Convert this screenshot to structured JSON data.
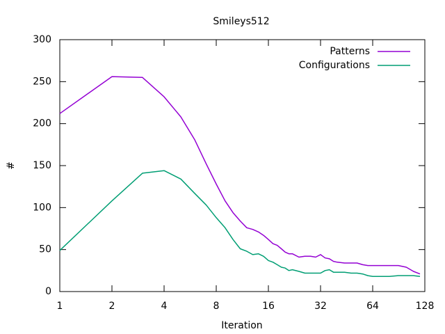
{
  "chart_data": {
    "type": "line",
    "title": "Smileys512",
    "xlabel": "Iteration",
    "ylabel": "#",
    "x_scale": "log2",
    "xlim": [
      1,
      128
    ],
    "ylim": [
      0,
      300
    ],
    "x_ticks": [
      1,
      2,
      4,
      8,
      16,
      32,
      64,
      128
    ],
    "x_tick_labels": [
      "1",
      "2",
      "4",
      "8",
      "16",
      "32",
      "64",
      "128"
    ],
    "y_ticks": [
      0,
      50,
      100,
      150,
      200,
      250,
      300
    ],
    "y_tick_labels": [
      "0",
      "50",
      "100",
      "150",
      "200",
      "250",
      "300"
    ],
    "legend_position": "top-right",
    "grid": false,
    "series": [
      {
        "name": "Patterns",
        "color": "#9400d3",
        "x": [
          1,
          2,
          3,
          4,
          5,
          6,
          7,
          8,
          9,
          10,
          11,
          12,
          13,
          14,
          15,
          16,
          17,
          18,
          19,
          20,
          21,
          22,
          24,
          26,
          28,
          30,
          32,
          33,
          34,
          36,
          38,
          40,
          44,
          48,
          52,
          56,
          60,
          64,
          70,
          80,
          90,
          100,
          110,
          120
        ],
        "y": [
          212,
          256,
          255,
          232,
          208,
          181,
          152,
          128,
          108,
          94,
          84,
          76,
          74,
          71,
          67,
          62,
          57,
          55,
          51,
          47,
          45,
          45,
          41,
          42,
          42,
          41,
          44,
          42,
          40,
          39,
          36,
          35,
          34,
          34,
          34,
          32,
          31,
          31,
          31,
          31,
          31,
          29,
          24,
          21
        ]
      },
      {
        "name": "Configurations",
        "color": "#009e73",
        "x": [
          1,
          2,
          3,
          4,
          5,
          6,
          7,
          8,
          9,
          10,
          11,
          12,
          13,
          14,
          15,
          16,
          17,
          18,
          19,
          20,
          21,
          22,
          24,
          26,
          28,
          30,
          32,
          34,
          36,
          38,
          40,
          44,
          48,
          52,
          56,
          60,
          64,
          70,
          80,
          90,
          100,
          110,
          120
        ],
        "y": [
          49,
          108,
          141,
          144,
          134,
          117,
          103,
          88,
          76,
          62,
          51,
          48,
          44,
          45,
          42,
          37,
          35,
          32,
          29,
          28,
          25,
          26,
          24,
          22,
          22,
          22,
          22,
          25,
          26,
          23,
          23,
          23,
          22,
          22,
          21,
          19,
          18,
          18,
          18,
          19,
          19,
          19,
          18
        ]
      }
    ]
  }
}
